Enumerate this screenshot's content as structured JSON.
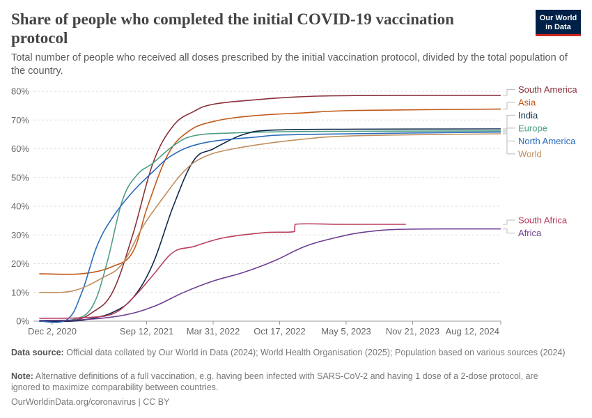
{
  "header": {
    "title": "Share of people who completed the initial COVID-19 vaccination protocol",
    "subtitle": "Total number of people who received all doses prescribed by the initial vaccination protocol, divided by the total population of the country.",
    "logo_line1": "Our World",
    "logo_line2": "in Data",
    "logo_colors": {
      "bg": "#002147",
      "bar": "#ce261e"
    }
  },
  "footer": {
    "source_label": "Data source:",
    "source_text": "Official data collated by Our World in Data (2024); World Health Organisation (2025); Population based on various sources (2024)",
    "note_label": "Note:",
    "note_text": "Alternative definitions of a full vaccination, e.g. having been infected with SARS-CoV-2 and having 1 dose of a 2-dose protocol, are ignored to maximize comparability between countries.",
    "site": "OurWorldinData.org/coronavirus | CC BY"
  },
  "chart_data": {
    "type": "line",
    "title": "Share of people who completed the initial COVID-19 vaccination protocol",
    "subtitle": "Total number of people who received all doses prescribed by the initial vaccination protocol, divided by the total population of the country.",
    "x_unit": "date",
    "xlim": [
      "2020-12-02",
      "2024-08-12"
    ],
    "ylim": [
      0,
      80
    ],
    "x_ticks": [
      "Dec 2, 2020",
      "Sep 12, 2021",
      "Mar 31, 2022",
      "Oct 17, 2022",
      "May 5, 2023",
      "Nov 21, 2023",
      "Aug 12, 2024"
    ],
    "y_ticks": [
      "0%",
      "10%",
      "20%",
      "30%",
      "40%",
      "50%",
      "60%",
      "70%",
      "80%"
    ],
    "grid": "horizontal dashed",
    "legend": "right, labels at line ends",
    "series": [
      {
        "name": "South America",
        "color": "#883039",
        "points": [
          [
            "2020-10-24",
            0
          ],
          [
            "2021-02-01",
            0.2
          ],
          [
            "2021-04-01",
            3
          ],
          [
            "2021-06-01",
            10
          ],
          [
            "2021-08-01",
            30
          ],
          [
            "2021-10-01",
            55
          ],
          [
            "2021-12-01",
            68
          ],
          [
            "2022-02-01",
            73
          ],
          [
            "2022-04-01",
            75.5
          ],
          [
            "2022-08-01",
            77
          ],
          [
            "2022-12-01",
            78
          ],
          [
            "2023-06-01",
            78.5
          ],
          [
            "2024-08-12",
            78.6
          ]
        ]
      },
      {
        "name": "Asia",
        "color": "#c05917",
        "points": [
          [
            "2020-10-24",
            16.5
          ],
          [
            "2021-03-01",
            16.5
          ],
          [
            "2021-06-01",
            19
          ],
          [
            "2021-08-01",
            24
          ],
          [
            "2021-09-15",
            40
          ],
          [
            "2021-11-15",
            58
          ],
          [
            "2022-01-15",
            66
          ],
          [
            "2022-04-01",
            69.5
          ],
          [
            "2022-08-01",
            71.5
          ],
          [
            "2023-01-01",
            72.5
          ],
          [
            "2023-06-01",
            73.3
          ],
          [
            "2024-08-12",
            73.8
          ]
        ]
      },
      {
        "name": "Europe",
        "color": "#4c9e84",
        "points": [
          [
            "2020-10-24",
            0
          ],
          [
            "2021-02-01",
            0.5
          ],
          [
            "2021-04-01",
            5
          ],
          [
            "2021-05-15",
            20
          ],
          [
            "2021-07-01",
            42
          ],
          [
            "2021-08-15",
            51
          ],
          [
            "2021-10-01",
            55
          ],
          [
            "2021-12-01",
            61
          ],
          [
            "2022-02-01",
            64.5
          ],
          [
            "2022-06-01",
            65.5
          ],
          [
            "2023-01-01",
            66
          ],
          [
            "2024-08-12",
            66.2
          ]
        ]
      },
      {
        "name": "India",
        "color": "#0e2a4b",
        "points": [
          [
            "2020-10-24",
            0
          ],
          [
            "2021-02-01",
            0
          ],
          [
            "2021-04-01",
            1
          ],
          [
            "2021-06-01",
            3
          ],
          [
            "2021-08-01",
            8
          ],
          [
            "2021-10-01",
            20
          ],
          [
            "2021-12-01",
            40
          ],
          [
            "2022-02-01",
            56
          ],
          [
            "2022-04-01",
            60
          ],
          [
            "2022-07-01",
            65
          ],
          [
            "2022-10-01",
            66.5
          ],
          [
            "2023-06-01",
            66.8
          ],
          [
            "2024-08-12",
            66.9
          ]
        ]
      },
      {
        "name": "North America",
        "color": "#286bbb",
        "points": [
          [
            "2020-10-24",
            0
          ],
          [
            "2021-01-15",
            0.5
          ],
          [
            "2021-03-01",
            10
          ],
          [
            "2021-04-15",
            26
          ],
          [
            "2021-06-01",
            36
          ],
          [
            "2021-08-01",
            45
          ],
          [
            "2021-10-01",
            52
          ],
          [
            "2021-12-01",
            58
          ],
          [
            "2022-03-01",
            62
          ],
          [
            "2022-08-01",
            64
          ],
          [
            "2023-01-01",
            65
          ],
          [
            "2024-08-12",
            65.8
          ]
        ]
      },
      {
        "name": "World",
        "color": "#c08e5f",
        "points": [
          [
            "2020-10-24",
            10
          ],
          [
            "2021-02-01",
            10.5
          ],
          [
            "2021-05-01",
            15
          ],
          [
            "2021-07-01",
            20
          ],
          [
            "2021-09-01",
            33
          ],
          [
            "2021-11-01",
            43
          ],
          [
            "2022-01-01",
            52
          ],
          [
            "2022-03-01",
            57
          ],
          [
            "2022-06-01",
            60
          ],
          [
            "2022-12-01",
            63
          ],
          [
            "2023-06-01",
            64.5
          ],
          [
            "2024-08-12",
            65.2
          ]
        ]
      },
      {
        "name": "South Africa",
        "color": "#b93e5b",
        "points": [
          [
            "2020-10-24",
            1
          ],
          [
            "2021-03-01",
            1.2
          ],
          [
            "2021-06-01",
            2.5
          ],
          [
            "2021-08-01",
            8
          ],
          [
            "2021-10-01",
            16
          ],
          [
            "2021-12-01",
            24
          ],
          [
            "2022-02-01",
            26
          ],
          [
            "2022-05-01",
            29
          ],
          [
            "2022-09-01",
            30.8
          ],
          [
            "2022-12-01",
            31.2
          ],
          [
            "2022-12-02",
            33.7
          ],
          [
            "2023-05-01",
            33.7
          ],
          [
            "2023-11-01",
            33.7
          ]
        ]
      },
      {
        "name": "Africa",
        "color": "#6d3e91",
        "points": [
          [
            "2020-10-24",
            0.3
          ],
          [
            "2021-03-01",
            0.5
          ],
          [
            "2021-07-01",
            2
          ],
          [
            "2021-10-01",
            5
          ],
          [
            "2022-01-01",
            10
          ],
          [
            "2022-04-01",
            14
          ],
          [
            "2022-07-01",
            17
          ],
          [
            "2022-10-01",
            21
          ],
          [
            "2023-01-01",
            26
          ],
          [
            "2023-04-01",
            29
          ],
          [
            "2023-07-01",
            31
          ],
          [
            "2023-11-01",
            32
          ],
          [
            "2024-08-12",
            32.1
          ]
        ]
      }
    ]
  }
}
